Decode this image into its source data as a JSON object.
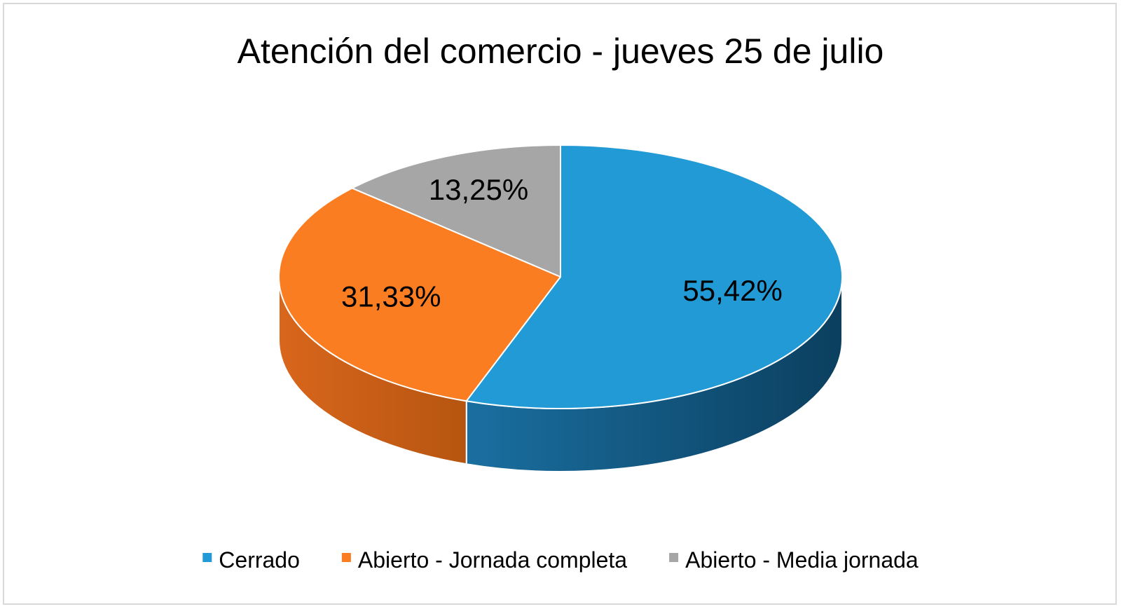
{
  "chart_data": {
    "type": "pie",
    "title": "Atención del comercio - jueves 25 de julio",
    "categories": [
      "Cerrado",
      "Abierto - Jornada completa",
      "Abierto - Media jornada"
    ],
    "values": [
      55.42,
      31.33,
      13.25
    ],
    "data_labels": [
      "55,42%",
      "31,33%",
      "13,25%"
    ],
    "colors": [
      "#229ad6",
      "#fb7d22",
      "#a6a6a6"
    ],
    "legend_position": "bottom",
    "style": "3d"
  }
}
